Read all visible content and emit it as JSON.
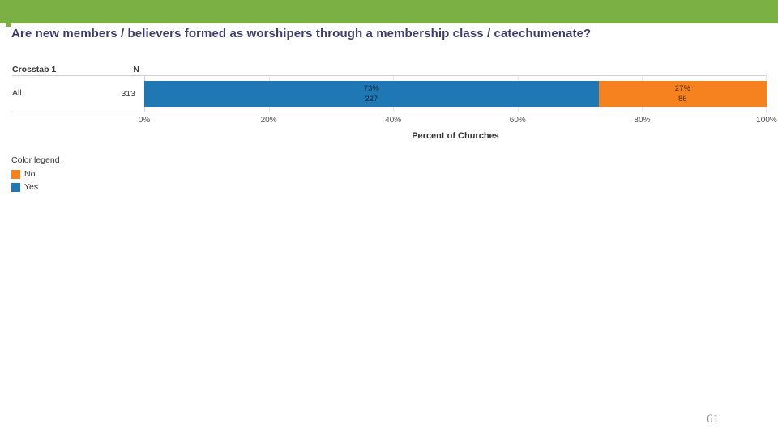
{
  "slide": {
    "title": "Are new members / believers formed as worshipers through a membership class / catechumenate?",
    "page_number": "61"
  },
  "colors": {
    "header_green": "#7AB044",
    "yes_blue": "#1F77B4",
    "no_orange": "#F5821F",
    "title_text": "#3D3D68"
  },
  "crosstab": {
    "header": {
      "col1": "Crosstab 1",
      "col2": "N"
    },
    "rows": [
      {
        "label": "All",
        "n": "313"
      }
    ]
  },
  "chart_data": {
    "type": "bar",
    "subtype": "horizontal-stacked-100pct",
    "categories": [
      "All"
    ],
    "n_total": 313,
    "series": [
      {
        "name": "Yes",
        "color": "#1F77B4",
        "values": [
          73
        ],
        "counts": [
          227
        ]
      },
      {
        "name": "No",
        "color": "#F5821F",
        "values": [
          27
        ],
        "counts": [
          86
        ]
      }
    ],
    "bar_labels": [
      {
        "pct": "73%",
        "count": "227"
      },
      {
        "pct": "27%",
        "count": "86"
      }
    ],
    "x_ticks": [
      "0%",
      "20%",
      "40%",
      "60%",
      "80%",
      "100%"
    ],
    "xlim": [
      0,
      100
    ],
    "xlabel": "Percent of Churches",
    "grid": "vertical-light",
    "legend_position": "bottom-left"
  },
  "legend": {
    "title": "Color legend",
    "items": [
      {
        "label": "No",
        "color": "#F5821F"
      },
      {
        "label": "Yes",
        "color": "#1F77B4"
      }
    ]
  }
}
